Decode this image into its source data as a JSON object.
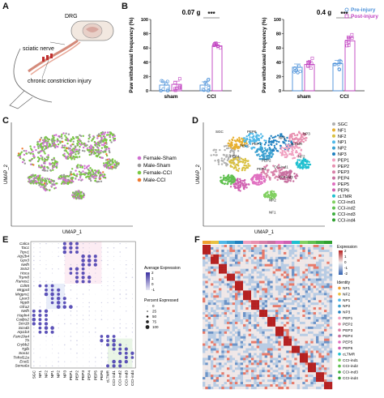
{
  "panels": {
    "a": "A",
    "b": "B",
    "c": "C",
    "d": "D",
    "e": "E",
    "f": "F"
  },
  "panel_a": {
    "labels": [
      "DRG",
      "sciatic nerve",
      "chronic constriction injury"
    ]
  },
  "chart_data": [
    {
      "type": "bar",
      "panel": "B-left",
      "title": "0.07 g",
      "ylabel": "Paw withdrawal frequency (%)",
      "categories": [
        "sham",
        "CCI"
      ],
      "ylim": [
        0,
        100
      ],
      "yticks": [
        "0",
        "20",
        "40",
        "60",
        "80",
        "100"
      ],
      "series": [
        {
          "name": "Pre-injury",
          "values": [
            8,
            8
          ],
          "color": "#4a90d9"
        },
        {
          "name": "Post-injury",
          "values": [
            9,
            63
          ],
          "color": "#c040c0"
        }
      ],
      "annotation": "***"
    },
    {
      "type": "bar",
      "panel": "B-right",
      "title": "0.4 g",
      "ylabel": "Paw withdrawal frequency (%)",
      "categories": [
        "sham",
        "CCI"
      ],
      "ylim": [
        0,
        100
      ],
      "yticks": [
        "0",
        "20",
        "40",
        "60",
        "80",
        "100"
      ],
      "series": [
        {
          "name": "Pre-injury",
          "values": [
            33,
            38
          ],
          "color": "#4a90d9"
        },
        {
          "name": "Post-injury",
          "values": [
            37,
            70
          ],
          "color": "#c040c0"
        }
      ],
      "annotation": "***",
      "legend": [
        "Pre-injury",
        "Post-injury"
      ]
    },
    {
      "type": "scatter",
      "panel": "C",
      "xlabel": "UMAP_1",
      "ylabel": "UMAP_2",
      "legend": [
        {
          "name": "Female-Sham",
          "color": "#d070d0"
        },
        {
          "name": "Male-Sham",
          "color": "#9a9a9a"
        },
        {
          "name": "Female-CCI",
          "color": "#7ac943"
        },
        {
          "name": "Male-CCI",
          "color": "#f07a30"
        }
      ]
    },
    {
      "type": "scatter",
      "panel": "D",
      "xlabel": "UMAP_1",
      "ylabel": "UMAP_2",
      "cluster_labels": [
        "SGC",
        "PEP6",
        "PEP1",
        "PEP5",
        "PEP4",
        "cLTMR",
        "NP1",
        "NP3",
        "PEP2",
        "PEP3",
        "CCI-ind1",
        "CCI-ind2",
        "NP2",
        "NF1",
        "NF2"
      ],
      "legend": [
        {
          "name": "SGC",
          "color": "#b0b0b0"
        },
        {
          "name": "NF1",
          "color": "#e8b030"
        },
        {
          "name": "NF2",
          "color": "#d9c040"
        },
        {
          "name": "NP1",
          "color": "#50b8e8"
        },
        {
          "name": "NP2",
          "color": "#3aa0d0"
        },
        {
          "name": "NP3",
          "color": "#2080c0"
        },
        {
          "name": "PEP1",
          "color": "#f0a0c0"
        },
        {
          "name": "PEP2",
          "color": "#e890b0"
        },
        {
          "name": "PEP3",
          "color": "#d880a8"
        },
        {
          "name": "PEP4",
          "color": "#c870a0"
        },
        {
          "name": "PEP5",
          "color": "#e070c0"
        },
        {
          "name": "PEP6",
          "color": "#d060b0"
        },
        {
          "name": "cLTMR",
          "color": "#20c0d0"
        },
        {
          "name": "CCI-ind1",
          "color": "#80d060"
        },
        {
          "name": "CCI-ind2",
          "color": "#60c050"
        },
        {
          "name": "CCI-ind3",
          "color": "#40b040"
        },
        {
          "name": "CCI-ind4",
          "color": "#30a030"
        }
      ]
    },
    {
      "type": "scatter",
      "panel": "E",
      "genes": [
        "Calca",
        "Tac1",
        "Trpv1",
        "Atp2b4",
        "Gpx3",
        "Nefh",
        "Sstr2",
        "Hoca",
        "Trpm8",
        "Rarres1",
        "Cd55",
        "Mrgprd",
        "Mrgprx1",
        "Lpar3",
        "Nppb",
        "Gfra2",
        "Nefh",
        "Hapln4",
        "Cadps2",
        "Scn1b",
        "Scn4b",
        "Atp1b3",
        "Fam19a4",
        "Th",
        "Crybb2",
        "Tgfb",
        "Sox11",
        "Tnfrsf12a",
        "Ecel1",
        "Sema6a"
      ],
      "clusters": [
        "SGC",
        "NF1",
        "NF2",
        "NP1",
        "NP2",
        "NP3",
        "PEP1",
        "PEP2",
        "PEP3",
        "PEP4",
        "PEP5",
        "PEP6",
        "cLTMR",
        "CCI-ind1",
        "CCI-ind2",
        "CCI-ind3",
        "CCI-ind4"
      ],
      "legend_titles": [
        "Average Expression",
        "Percent Expressed"
      ],
      "avg_expr_ticks": [
        "2",
        "1",
        "0",
        "-1"
      ],
      "pct_expr_ticks": [
        "0",
        "25",
        "50",
        "75",
        "100"
      ]
    },
    {
      "type": "heatmap",
      "panel": "F",
      "legend_titles": [
        "Expression",
        "Identity"
      ],
      "expr_ticks": [
        "2",
        "1",
        "0",
        "-1",
        "-2"
      ],
      "identities": [
        "NF1",
        "NF2",
        "NP1",
        "NP2",
        "NP3",
        "PEP1",
        "PEP2",
        "PEP3",
        "PEP4",
        "PEP5",
        "PEP6",
        "cLTMR",
        "CCI-ind1",
        "CCI-ind2",
        "CCI-ind3",
        "CCI-ind4"
      ]
    }
  ]
}
